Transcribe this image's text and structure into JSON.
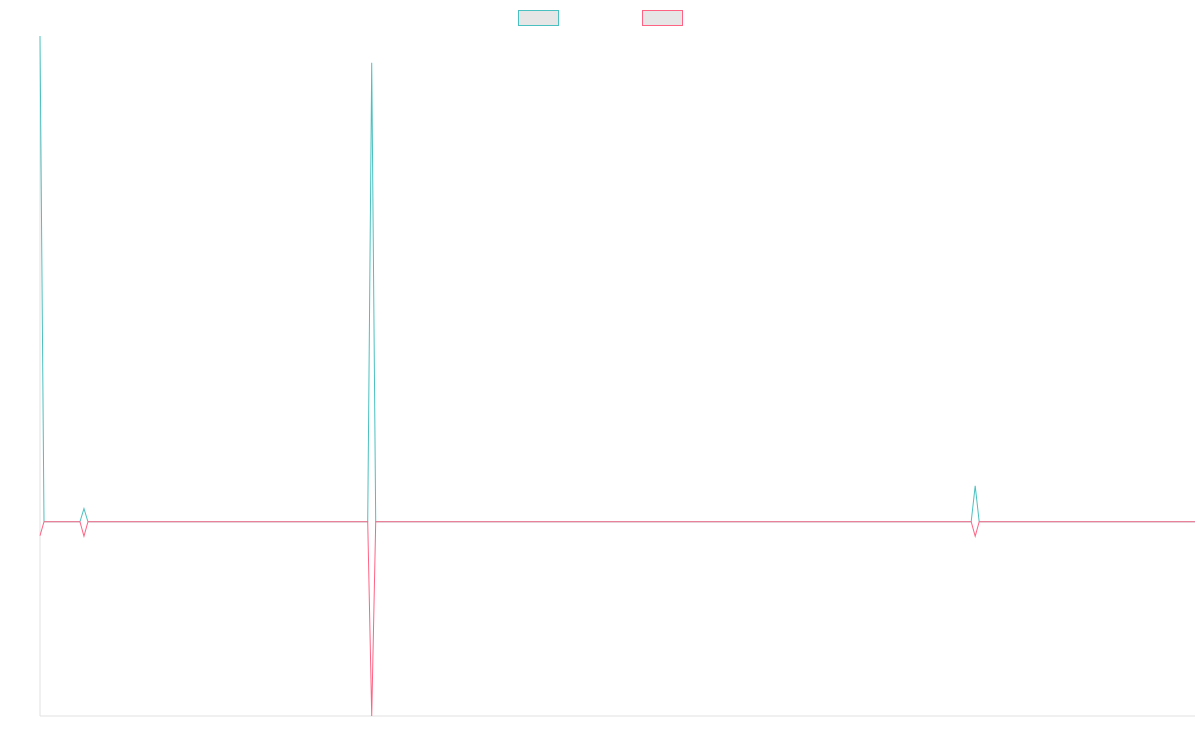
{
  "chart_data": {
    "type": "line",
    "x": [
      0,
      1,
      10,
      11,
      12,
      82,
      83,
      84,
      233,
      234,
      235,
      289
    ],
    "xlim": [
      0,
      289
    ],
    "ylim": [
      -40,
      100
    ],
    "legend_position": "top",
    "legend_fill": "#e6e6e6",
    "series": [
      {
        "color": "#4bc0c0",
        "values": [
          100,
          0,
          0,
          2.7,
          0,
          0,
          94.5,
          0,
          0,
          7.4,
          0,
          0
        ]
      },
      {
        "color": "#ff6384",
        "values": [
          -2.9,
          0,
          0,
          -3,
          0,
          0,
          -40,
          0,
          0,
          -3,
          0,
          0
        ]
      }
    ]
  }
}
